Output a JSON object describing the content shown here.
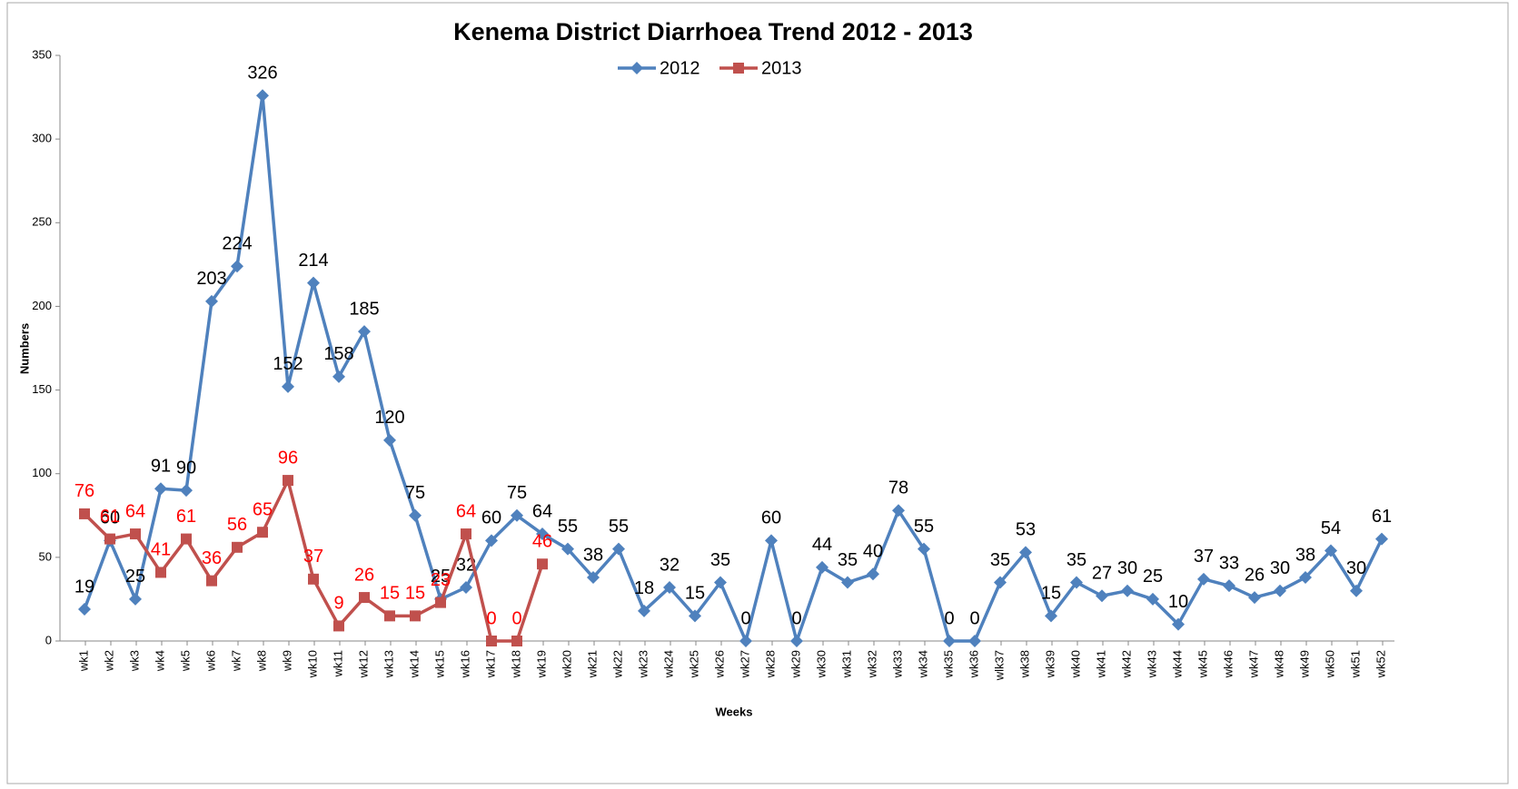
{
  "chart_data": {
    "type": "line",
    "title": "Kenema District Diarrhoea Trend 2012 - 2013",
    "x_label": "Weeks",
    "y_label": "Numbers",
    "categories": [
      "wk1",
      "wk2",
      "wk3",
      "wk4",
      "wk5",
      "wk6",
      "wk7",
      "wk8",
      "wk9",
      "wk10",
      "wk11",
      "wk12",
      "wk13",
      "wk14",
      "wk15",
      "wk16",
      "wk17",
      "wk18",
      "wk19",
      "wk20",
      "wk21",
      "wk22",
      "wk23",
      "wk24",
      "wk25",
      "wk26",
      "wk27",
      "wk28",
      "wk29",
      "wk30",
      "wk31",
      "wk32",
      "wk33",
      "wk34",
      "wk35",
      "wk36",
      "wlk37",
      "wk38",
      "wk39",
      "wk40",
      "wk41",
      "wk42",
      "wk43",
      "wk44",
      "wk45",
      "wk46",
      "wk47",
      "wk48",
      "wk49",
      "wk50",
      "wk51",
      "wk52"
    ],
    "series": [
      {
        "name": "2012",
        "color": "#4f81bd",
        "marker": "diamond",
        "label_color": "#000000",
        "values": [
          19,
          60,
          25,
          91,
          90,
          203,
          224,
          326,
          152,
          214,
          158,
          185,
          120,
          75,
          25,
          32,
          60,
          75,
          64,
          55,
          38,
          55,
          18,
          32,
          15,
          35,
          0,
          60,
          0,
          44,
          35,
          40,
          78,
          55,
          0,
          0,
          35,
          53,
          15,
          35,
          27,
          30,
          25,
          10,
          37,
          33,
          26,
          30,
          38,
          54,
          30,
          61
        ]
      },
      {
        "name": "2013",
        "color": "#c0504d",
        "marker": "square",
        "label_color": "#ff0000",
        "values": [
          76,
          61,
          64,
          41,
          61,
          36,
          56,
          65,
          96,
          37,
          9,
          26,
          15,
          15,
          23,
          64,
          0,
          0,
          46,
          null,
          null,
          null,
          null,
          null,
          null,
          null,
          null,
          null,
          null,
          null,
          null,
          null,
          null,
          null,
          null,
          null,
          null,
          null,
          null,
          null,
          null,
          null,
          null,
          null,
          null,
          null,
          null,
          null,
          null,
          null,
          null,
          null
        ]
      }
    ],
    "ylim": [
      0,
      350
    ],
    "yticks": [
      0,
      50,
      100,
      150,
      200,
      250,
      300,
      350
    ],
    "legend": "top",
    "grid": false
  }
}
